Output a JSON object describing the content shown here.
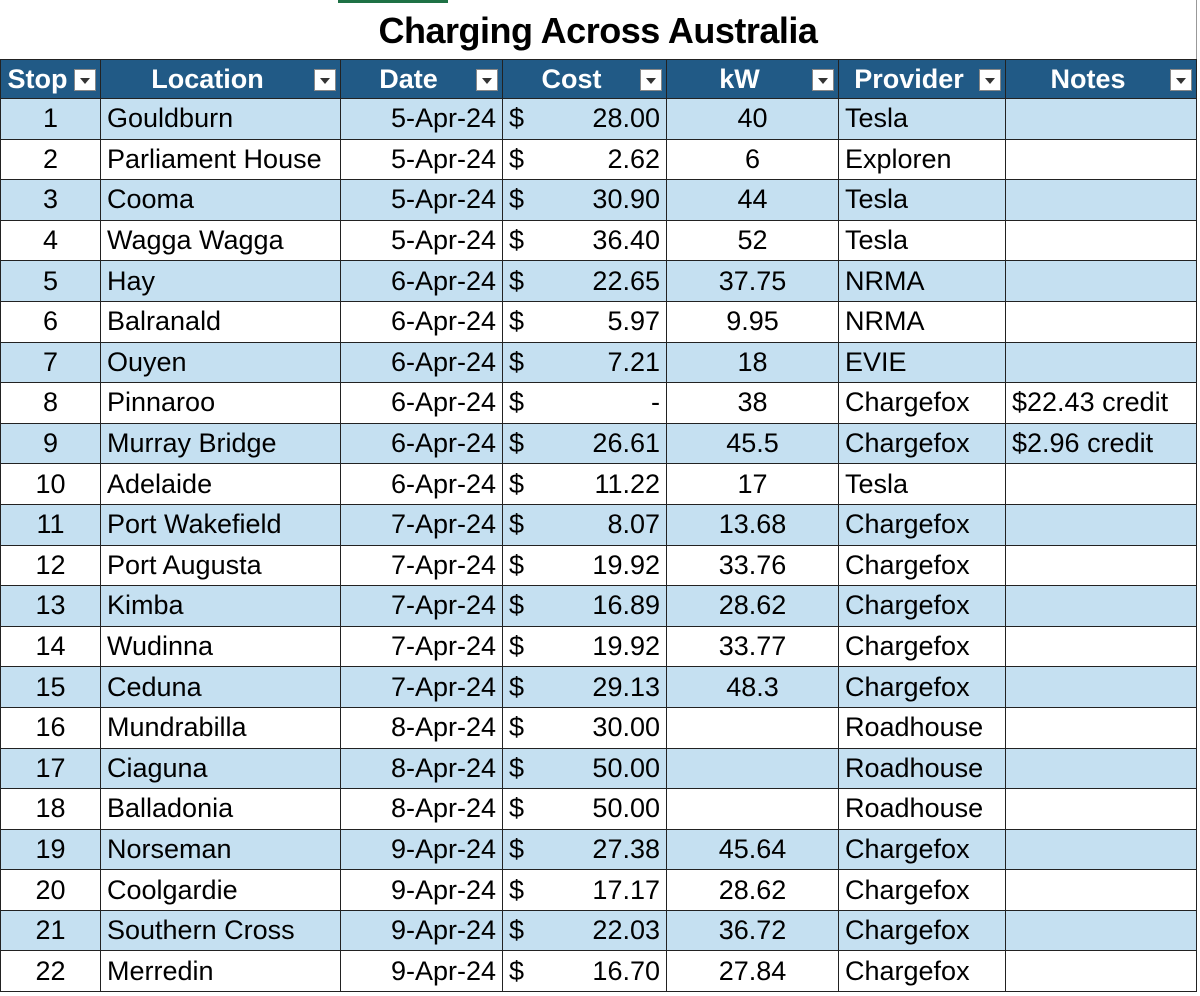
{
  "title": "Charging Across Australia",
  "currency": "$",
  "table": {
    "columns": [
      "Stop",
      "Location",
      "Date",
      "Cost",
      "kW",
      "Provider",
      "Notes"
    ],
    "rows": [
      [
        "1",
        "Gouldburn",
        "5-Apr-24",
        "28.00",
        "40",
        "Tesla",
        null
      ],
      [
        "2",
        "Parliament House",
        "5-Apr-24",
        "2.62",
        "6",
        "Exploren",
        null
      ],
      [
        "3",
        "Cooma",
        "5-Apr-24",
        "30.90",
        "44",
        "Tesla",
        null
      ],
      [
        "4",
        "Wagga Wagga",
        "5-Apr-24",
        "36.40",
        "52",
        "Tesla",
        null
      ],
      [
        "5",
        "Hay",
        "6-Apr-24",
        "22.65",
        "37.75",
        "NRMA",
        null
      ],
      [
        "6",
        "Balranald",
        "6-Apr-24",
        "5.97",
        "9.95",
        "NRMA",
        null
      ],
      [
        "7",
        "Ouyen",
        "6-Apr-24",
        "7.21",
        "18",
        "EVIE",
        null
      ],
      [
        "8",
        "Pinnaroo",
        "6-Apr-24",
        "-",
        "38",
        "Chargefox",
        "$22.43 credit"
      ],
      [
        "9",
        "Murray Bridge",
        "6-Apr-24",
        "26.61",
        "45.5",
        "Chargefox",
        "$2.96 credit"
      ],
      [
        "10",
        "Adelaide",
        "6-Apr-24",
        "11.22",
        "17",
        "Tesla",
        null
      ],
      [
        "11",
        "Port Wakefield",
        "7-Apr-24",
        "8.07",
        "13.68",
        "Chargefox",
        null
      ],
      [
        "12",
        "Port Augusta",
        "7-Apr-24",
        "19.92",
        "33.76",
        "Chargefox",
        null
      ],
      [
        "13",
        "Kimba",
        "7-Apr-24",
        "16.89",
        "28.62",
        "Chargefox",
        null
      ],
      [
        "14",
        "Wudinna",
        "7-Apr-24",
        "19.92",
        "33.77",
        "Chargefox",
        null
      ],
      [
        "15",
        "Ceduna",
        "7-Apr-24",
        "29.13",
        "48.3",
        "Chargefox",
        null
      ],
      [
        "16",
        "Mundrabilla",
        "8-Apr-24",
        "30.00",
        null,
        "Roadhouse",
        null
      ],
      [
        "17",
        "Ciaguna",
        "8-Apr-24",
        "50.00",
        null,
        "Roadhouse",
        null
      ],
      [
        "18",
        "Balladonia",
        "8-Apr-24",
        "50.00",
        null,
        "Roadhouse",
        null
      ],
      [
        "19",
        "Norseman",
        "9-Apr-24",
        "27.38",
        "45.64",
        "Chargefox",
        null
      ],
      [
        "20",
        "Coolgardie",
        "9-Apr-24",
        "17.17",
        "28.62",
        "Chargefox",
        null
      ],
      [
        "21",
        "Southern Cross",
        "9-Apr-24",
        "22.03",
        "36.72",
        "Chargefox",
        null
      ],
      [
        "22",
        "Merredin",
        "9-Apr-24",
        "16.70",
        "27.84",
        "Chargefox",
        null
      ]
    ]
  }
}
